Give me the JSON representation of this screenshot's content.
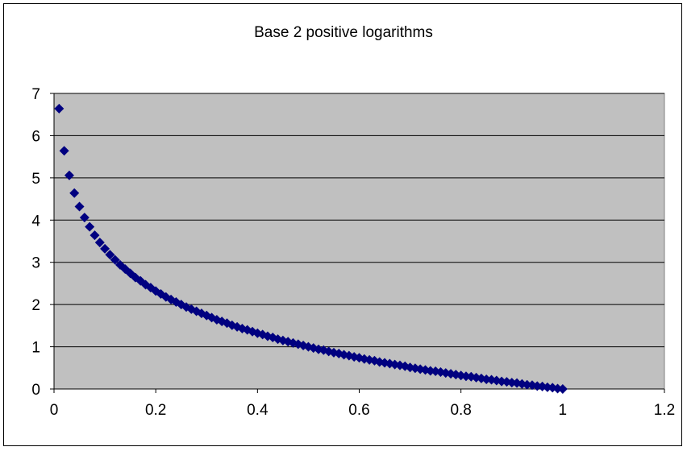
{
  "chart_data": {
    "type": "scatter",
    "title": "Base 2 positive logarithms",
    "xlabel": "",
    "ylabel": "",
    "xlim": [
      0,
      1.2
    ],
    "ylim": [
      0,
      7
    ],
    "x_ticks": [
      "0",
      "0.2",
      "0.4",
      "0.6",
      "0.8",
      "1",
      "1.2"
    ],
    "y_ticks": [
      "0",
      "1",
      "2",
      "3",
      "4",
      "5",
      "6",
      "7"
    ],
    "grid": "horizontal",
    "legend": "none",
    "plot_background": "#c0c0c0",
    "marker_color": "#000080",
    "series": [
      {
        "x": [
          0.01,
          0.02,
          0.03,
          0.04,
          0.05,
          0.06,
          0.07,
          0.08,
          0.09,
          0.1,
          0.11,
          0.12,
          0.13,
          0.14,
          0.15,
          0.16,
          0.17,
          0.18,
          0.19,
          0.2,
          0.21,
          0.22,
          0.23,
          0.24,
          0.25,
          0.26,
          0.27,
          0.28,
          0.29,
          0.3,
          0.31,
          0.32,
          0.33,
          0.34,
          0.35,
          0.36,
          0.37,
          0.38,
          0.39,
          0.4,
          0.41,
          0.42,
          0.43,
          0.44,
          0.45,
          0.46,
          0.47,
          0.48,
          0.49,
          0.5,
          0.51,
          0.52,
          0.53,
          0.54,
          0.55,
          0.56,
          0.57,
          0.58,
          0.59,
          0.6,
          0.61,
          0.62,
          0.63,
          0.64,
          0.65,
          0.66,
          0.67,
          0.68,
          0.69,
          0.7,
          0.71,
          0.72,
          0.73,
          0.74,
          0.75,
          0.76,
          0.77,
          0.78,
          0.79,
          0.8,
          0.81,
          0.82,
          0.83,
          0.84,
          0.85,
          0.86,
          0.87,
          0.88,
          0.89,
          0.9,
          0.91,
          0.92,
          0.93,
          0.94,
          0.95,
          0.96,
          0.97,
          0.98,
          0.99,
          1.0
        ],
        "y": [
          6.64,
          5.64,
          5.06,
          4.64,
          4.32,
          4.06,
          3.84,
          3.64,
          3.47,
          3.32,
          3.18,
          3.06,
          2.94,
          2.84,
          2.74,
          2.64,
          2.56,
          2.47,
          2.4,
          2.32,
          2.25,
          2.18,
          2.12,
          2.06,
          2.0,
          1.94,
          1.89,
          1.84,
          1.79,
          1.74,
          1.69,
          1.64,
          1.6,
          1.56,
          1.51,
          1.47,
          1.43,
          1.4,
          1.36,
          1.32,
          1.29,
          1.25,
          1.22,
          1.18,
          1.15,
          1.12,
          1.09,
          1.06,
          1.03,
          1.0,
          0.97,
          0.94,
          0.92,
          0.89,
          0.86,
          0.84,
          0.81,
          0.79,
          0.76,
          0.74,
          0.71,
          0.69,
          0.67,
          0.64,
          0.62,
          0.6,
          0.58,
          0.56,
          0.54,
          0.51,
          0.49,
          0.47,
          0.45,
          0.43,
          0.42,
          0.4,
          0.38,
          0.36,
          0.34,
          0.32,
          0.3,
          0.29,
          0.27,
          0.25,
          0.23,
          0.22,
          0.2,
          0.18,
          0.17,
          0.15,
          0.14,
          0.12,
          0.1,
          0.09,
          0.07,
          0.06,
          0.04,
          0.03,
          0.01,
          0.0
        ]
      }
    ]
  }
}
